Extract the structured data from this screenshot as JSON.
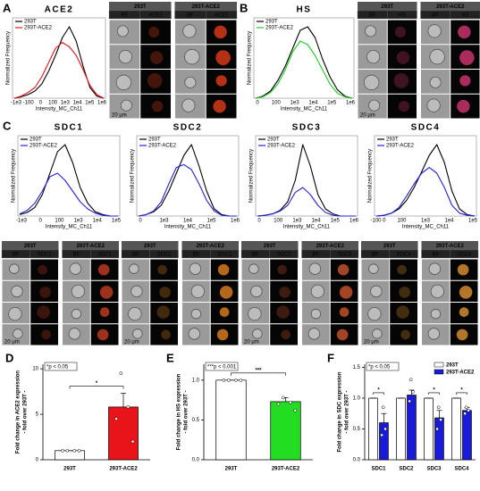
{
  "histograms": [
    {
      "letter": "A",
      "title": "ACE2",
      "xlabel": "Intensity_MC_Ch11",
      "ylabel": "Normalized Frequency",
      "xticks": [
        "-1e3",
        "-100",
        "0",
        "100",
        "1e3",
        "1e4",
        "1e5",
        "1e6"
      ],
      "series": [
        {
          "name": "293T",
          "color": "#000000",
          "values": [
            0,
            0.02,
            0.05,
            0.1,
            0.2,
            0.38,
            0.6,
            0.85,
            1.0,
            0.8,
            0.45,
            0.15,
            0.03,
            0
          ]
        },
        {
          "name": "293T-ACE2",
          "color": "#e8141a",
          "values": [
            0,
            0.03,
            0.08,
            0.15,
            0.3,
            0.5,
            0.7,
            0.78,
            0.72,
            0.6,
            0.4,
            0.18,
            0.05,
            0
          ]
        }
      ]
    },
    {
      "letter": "B",
      "title": "HS",
      "xlabel": "Intensity_MC_Ch11",
      "ylabel": "Normalized Frequency",
      "xticks": [
        "0",
        "100",
        "1e3",
        "1e4",
        "1e5",
        "1e6"
      ],
      "series": [
        {
          "name": "293T",
          "color": "#000000",
          "values": [
            0,
            0.03,
            0.1,
            0.25,
            0.45,
            0.7,
            0.95,
            1.0,
            0.85,
            0.55,
            0.3,
            0.12,
            0.03,
            0
          ]
        },
        {
          "name": "293T-ACE2",
          "color": "#22cc22",
          "values": [
            0,
            0.02,
            0.08,
            0.2,
            0.4,
            0.65,
            0.8,
            0.75,
            0.6,
            0.4,
            0.2,
            0.07,
            0.02,
            0
          ]
        }
      ]
    },
    {
      "letter": "C",
      "title": "SDC1",
      "xlabel": "Intensity_MC_Ch11",
      "ylabel": "Normalized Frequency",
      "xticks": [
        "-1e3",
        "0",
        "100",
        "1e3",
        "1e4",
        "1e5"
      ],
      "series": [
        {
          "name": "293T",
          "color": "#000000",
          "values": [
            0.02,
            0.05,
            0.12,
            0.3,
            0.6,
            0.9,
            1.0,
            0.75,
            0.4,
            0.18,
            0.06,
            0.02,
            0,
            0
          ]
        },
        {
          "name": "293T-ACE2",
          "color": "#2222dd",
          "values": [
            0.03,
            0.08,
            0.18,
            0.35,
            0.55,
            0.6,
            0.5,
            0.35,
            0.2,
            0.1,
            0.04,
            0.01,
            0,
            0
          ]
        }
      ]
    },
    {
      "title": "SDC2",
      "xlabel": "Intensity_MC_Ch11",
      "ylabel": "Normalized Frequency",
      "xticks": [
        "0",
        "1e3",
        "1e4",
        "1e5",
        "1e6"
      ],
      "series": [
        {
          "name": "293T",
          "color": "#000000",
          "values": [
            0,
            0.02,
            0.06,
            0.15,
            0.35,
            0.6,
            0.85,
            1.0,
            0.7,
            0.35,
            0.1,
            0.02,
            0,
            0
          ]
        },
        {
          "name": "293T-ACE2",
          "color": "#2222dd",
          "values": [
            0,
            0.02,
            0.07,
            0.2,
            0.45,
            0.68,
            0.72,
            0.65,
            0.45,
            0.22,
            0.07,
            0.01,
            0,
            0
          ]
        }
      ]
    },
    {
      "title": "SDC3",
      "xlabel": "Intensity_MC_Ch11",
      "ylabel": "Normalized Frequency",
      "xticks": [
        "0",
        "100",
        "1e3",
        "1e4",
        "1e5",
        "1e6"
      ],
      "series": [
        {
          "name": "293T",
          "color": "#000000",
          "values": [
            0,
            0.01,
            0.03,
            0.08,
            0.2,
            0.5,
            1.0,
            0.7,
            0.3,
            0.1,
            0.03,
            0,
            0,
            0
          ]
        },
        {
          "name": "293T-ACE2",
          "color": "#2222dd",
          "values": [
            0,
            0.01,
            0.03,
            0.07,
            0.15,
            0.33,
            0.4,
            0.3,
            0.15,
            0.05,
            0.01,
            0,
            0,
            0
          ]
        }
      ]
    },
    {
      "title": "SDC4",
      "xlabel": "Intensity_MC_Ch11",
      "ylabel": "Normalized Frequency",
      "xticks": [
        "-100 0",
        "100",
        "1e3",
        "1e4",
        "1e5"
      ],
      "series": [
        {
          "name": "293T",
          "color": "#000000",
          "values": [
            0,
            0.01,
            0.04,
            0.1,
            0.22,
            0.4,
            0.62,
            0.85,
            1.0,
            0.75,
            0.35,
            0.1,
            0.02,
            0
          ]
        },
        {
          "name": "293T-ACE2",
          "color": "#2222dd",
          "values": [
            0,
            0.01,
            0.04,
            0.12,
            0.28,
            0.45,
            0.6,
            0.68,
            0.6,
            0.4,
            0.15,
            0.04,
            0.01,
            0
          ]
        }
      ]
    }
  ],
  "image_panels": [
    {
      "groups": [
        {
          "name": "293T",
          "channels": [
            "BF",
            "ACE2"
          ]
        },
        {
          "name": "293T-ACE2",
          "channels": [
            "BF",
            "ACE2"
          ]
        }
      ],
      "scale": "20 µm"
    },
    {
      "groups": [
        {
          "name": "293T",
          "channels": [
            "BF",
            "HS"
          ]
        },
        {
          "name": "293T-ACE2",
          "channels": [
            "BF",
            "HS"
          ]
        }
      ],
      "scale": "20 µm"
    },
    {
      "groups": [
        {
          "name": "293T",
          "channels": [
            "BF",
            "SDC1"
          ]
        },
        {
          "name": "293T-ACE2",
          "channels": [
            "BF",
            "SDC1"
          ]
        }
      ],
      "scale": "20 µm"
    },
    {
      "groups": [
        {
          "name": "293T",
          "channels": [
            "BF",
            "SDC2"
          ]
        },
        {
          "name": "293T-ACE2",
          "channels": [
            "BF",
            "SDC2"
          ]
        }
      ],
      "scale": "20 µm"
    },
    {
      "groups": [
        {
          "name": "293T",
          "channels": [
            "BF",
            "SDC3"
          ]
        },
        {
          "name": "293T-ACE2",
          "channels": [
            "BF",
            "SDC3"
          ]
        }
      ],
      "scale": "20 µm"
    },
    {
      "groups": [
        {
          "name": "293T",
          "channels": [
            "BF",
            "SDC4"
          ]
        },
        {
          "name": "293T-ACE2",
          "channels": [
            "BF",
            "SDC4"
          ]
        }
      ],
      "scale": "20 µm"
    }
  ],
  "chart_data": [
    {
      "type": "bar",
      "letter": "D",
      "ylabel": "Fold change in ACE2 expression",
      "ylabel2": "- fold over 293T -",
      "categories": [
        "293T",
        "293T-ACE2"
      ],
      "ylim": [
        0,
        10.5
      ],
      "yticks": [
        0,
        5,
        10
      ],
      "series": [
        {
          "colors": [
            "#ffffff",
            "#e8141a"
          ],
          "values": [
            1,
            5.8
          ],
          "errors": [
            0,
            1.5
          ],
          "points": [
            [
              1,
              1,
              1,
              1
            ],
            [
              9.5,
              5.8,
              4.5,
              2
            ]
          ]
        }
      ],
      "significance": "*",
      "pvalue": "*p < 0.05"
    },
    {
      "type": "bar",
      "letter": "E",
      "ylabel": "Fold change in HS expression",
      "ylabel2": "- fold over 293T -",
      "categories": [
        "293T",
        "293T-ACE2"
      ],
      "ylim": [
        0,
        1.2
      ],
      "yticks": [
        {
          "value": 0,
          "label": "0.0"
        },
        {
          "value": 0.5,
          "label": "0.5"
        },
        {
          "value": 1,
          "label": "1.0"
        }
      ],
      "series": [
        {
          "colors": [
            "#ffffff",
            "#22dd22"
          ],
          "values": [
            1,
            0.73
          ],
          "errors": [
            0,
            0.05
          ],
          "points": [
            [
              1,
              1,
              1,
              1
            ],
            [
              0.78,
              0.72,
              0.7,
              0.62
            ]
          ]
        }
      ],
      "significance": "***",
      "pvalue": "***p < 0.001"
    },
    {
      "type": "bar",
      "letter": "F",
      "ylabel": "Fold change in SDC expression",
      "ylabel2": "- fold over 293T -",
      "categories": [
        "SDC1",
        "SDC2",
        "SDC3",
        "SDC4"
      ],
      "ylim": [
        0,
        1.55
      ],
      "yticks": [
        {
          "value": 0,
          "label": "0.0"
        },
        {
          "value": 0.5,
          "label": "0.5"
        },
        {
          "value": 1,
          "label": "1.0"
        },
        {
          "value": 1.5,
          "label": "1.5"
        }
      ],
      "legend": "top-right",
      "series": [
        {
          "name": "293T",
          "color": "#ffffff",
          "values": [
            1,
            1,
            1,
            1
          ],
          "errors": [
            0,
            0,
            0,
            0
          ]
        },
        {
          "name": "293T-ACE2",
          "color": "#1a1adb",
          "values": [
            0.6,
            1.05,
            0.68,
            0.8
          ],
          "errors": [
            0.15,
            0.08,
            0.12,
            0.05
          ],
          "points": [
            [
              0.85,
              0.5,
              0.4
            ],
            [
              1.3,
              1.1,
              0.95
            ],
            [
              0.85,
              0.65,
              0.5
            ],
            [
              0.85,
              0.8,
              0.75
            ]
          ]
        }
      ],
      "significance": [
        "*",
        null,
        "*",
        "*"
      ],
      "pvalue": "*p < 0.05"
    }
  ]
}
